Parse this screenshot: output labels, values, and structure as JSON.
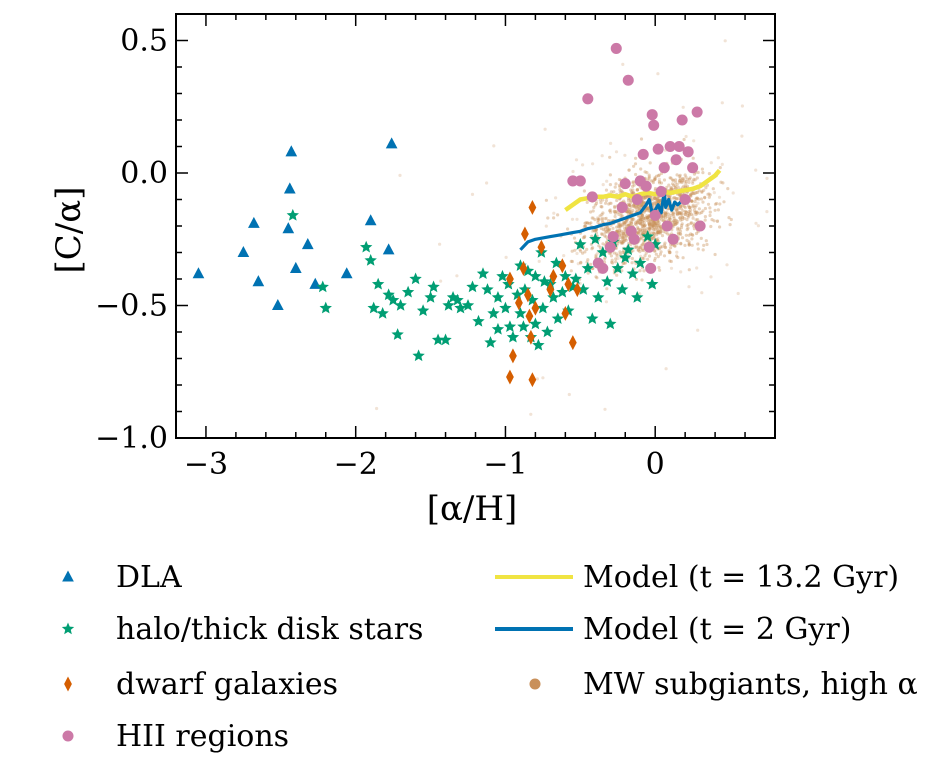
{
  "chart_data": {
    "type": "scatter",
    "xlabel": "[α/H]",
    "ylabel": "[C/α]",
    "xlim": [
      -3.2,
      0.8
    ],
    "ylim": [
      -1.0,
      0.6
    ],
    "xticks": [
      -3,
      -2,
      -1,
      0
    ],
    "yticks": [
      0.5,
      0.0,
      -0.5,
      -1.0
    ],
    "xtick_labels": [
      "−3",
      "−2",
      "−1",
      "0"
    ],
    "ytick_labels": [
      "0.5",
      "0.0",
      "−0.5",
      "−1.0"
    ],
    "minor_x_step": 0.2,
    "minor_y_step": 0.1,
    "grid": false,
    "legend_position": "below",
    "colors": {
      "dla": "#0072b2",
      "halo": "#009e73",
      "dwarf": "#d55e00",
      "hii": "#cc79a7",
      "model_long": "#f0e442",
      "model_short": "#0072b2",
      "subgiants": "#c9905a"
    },
    "series": [
      {
        "name": "DLA",
        "kind": "scatter",
        "marker": "triangle",
        "color": "#0072b2",
        "points": [
          [
            -3.05,
            -0.38
          ],
          [
            -2.75,
            -0.3
          ],
          [
            -2.68,
            -0.19
          ],
          [
            -2.65,
            -0.41
          ],
          [
            -2.52,
            -0.5
          ],
          [
            -2.45,
            -0.21
          ],
          [
            -2.44,
            -0.06
          ],
          [
            -2.43,
            0.08
          ],
          [
            -2.4,
            -0.36
          ],
          [
            -2.32,
            -0.27
          ],
          [
            -2.27,
            -0.42
          ],
          [
            -2.06,
            -0.38
          ],
          [
            -1.9,
            -0.18
          ],
          [
            -1.78,
            -0.29
          ],
          [
            -1.76,
            0.11
          ]
        ]
      },
      {
        "name": "halo/thick disk stars",
        "kind": "scatter",
        "marker": "star",
        "color": "#009e73",
        "points": [
          [
            -2.42,
            -0.16
          ],
          [
            -2.22,
            -0.43
          ],
          [
            -2.2,
            -0.51
          ],
          [
            -1.93,
            -0.28
          ],
          [
            -1.9,
            -0.33
          ],
          [
            -1.88,
            -0.51
          ],
          [
            -1.85,
            -0.42
          ],
          [
            -1.82,
            -0.53
          ],
          [
            -1.78,
            -0.46
          ],
          [
            -1.75,
            -0.48
          ],
          [
            -1.72,
            -0.61
          ],
          [
            -1.7,
            -0.5
          ],
          [
            -1.65,
            -0.45
          ],
          [
            -1.6,
            -0.4
          ],
          [
            -1.58,
            -0.69
          ],
          [
            -1.55,
            -0.52
          ],
          [
            -1.5,
            -0.47
          ],
          [
            -1.48,
            -0.43
          ],
          [
            -1.45,
            -0.63
          ],
          [
            -1.4,
            -0.63
          ],
          [
            -1.38,
            -0.5
          ],
          [
            -1.35,
            -0.47
          ],
          [
            -1.32,
            -0.48
          ],
          [
            -1.3,
            -0.51
          ],
          [
            -1.25,
            -0.5
          ],
          [
            -1.22,
            -0.43
          ],
          [
            -1.18,
            -0.56
          ],
          [
            -1.15,
            -0.38
          ],
          [
            -1.12,
            -0.44
          ],
          [
            -1.1,
            -0.64
          ],
          [
            -1.08,
            -0.53
          ],
          [
            -1.05,
            -0.47
          ],
          [
            -1.05,
            -0.59
          ],
          [
            -1.02,
            -0.39
          ],
          [
            -1.0,
            -0.51
          ],
          [
            -0.98,
            -0.42
          ],
          [
            -0.97,
            -0.58
          ],
          [
            -0.95,
            -0.62
          ],
          [
            -0.92,
            -0.46
          ],
          [
            -0.9,
            -0.35
          ],
          [
            -0.9,
            -0.53
          ],
          [
            -0.88,
            -0.58
          ],
          [
            -0.87,
            -0.44
          ],
          [
            -0.85,
            -0.37
          ],
          [
            -0.83,
            -0.62
          ],
          [
            -0.82,
            -0.48
          ],
          [
            -0.8,
            -0.39
          ],
          [
            -0.8,
            -0.57
          ],
          [
            -0.78,
            -0.65
          ],
          [
            -0.76,
            -0.3
          ],
          [
            -0.75,
            -0.51
          ],
          [
            -0.74,
            -0.41
          ],
          [
            -0.72,
            -0.6
          ],
          [
            -0.7,
            -0.42
          ],
          [
            -0.68,
            -0.47
          ],
          [
            -0.66,
            -0.34
          ],
          [
            -0.65,
            -0.55
          ],
          [
            -0.62,
            -0.45
          ],
          [
            -0.6,
            -0.39
          ],
          [
            -0.58,
            -0.52
          ],
          [
            -0.55,
            -0.43
          ],
          [
            -0.53,
            -0.4
          ],
          [
            -0.5,
            -0.27
          ],
          [
            -0.48,
            -0.44
          ],
          [
            -0.45,
            -0.36
          ],
          [
            -0.42,
            -0.55
          ],
          [
            -0.4,
            -0.25
          ],
          [
            -0.38,
            -0.47
          ],
          [
            -0.35,
            -0.3
          ],
          [
            -0.32,
            -0.41
          ],
          [
            -0.3,
            -0.57
          ],
          [
            -0.28,
            -0.26
          ],
          [
            -0.25,
            -0.36
          ],
          [
            -0.22,
            -0.44
          ],
          [
            -0.2,
            -0.32
          ],
          [
            -0.18,
            -0.29
          ],
          [
            -0.15,
            -0.38
          ],
          [
            -0.12,
            -0.47
          ],
          [
            -0.1,
            -0.34
          ],
          [
            -0.05,
            -0.24
          ],
          [
            -0.02,
            -0.42
          ],
          [
            0.0,
            -0.27
          ]
        ]
      },
      {
        "name": "dwarf galaxies",
        "kind": "scatter",
        "marker": "diamond",
        "color": "#d55e00",
        "points": [
          [
            -0.97,
            -0.77
          ],
          [
            -0.97,
            -0.4
          ],
          [
            -0.95,
            -0.69
          ],
          [
            -0.91,
            -0.49
          ],
          [
            -0.88,
            -0.36
          ],
          [
            -0.87,
            -0.23
          ],
          [
            -0.85,
            -0.46
          ],
          [
            -0.84,
            -0.54
          ],
          [
            -0.83,
            -0.62
          ],
          [
            -0.82,
            -0.78
          ],
          [
            -0.82,
            -0.13
          ],
          [
            -0.8,
            -0.51
          ],
          [
            -0.76,
            -0.28
          ],
          [
            -0.7,
            -0.44
          ],
          [
            -0.68,
            -0.39
          ],
          [
            -0.62,
            -0.35
          ],
          [
            -0.6,
            -0.53
          ],
          [
            -0.58,
            -0.42
          ],
          [
            -0.55,
            -0.64
          ],
          [
            -0.52,
            -0.44
          ]
        ]
      },
      {
        "name": "HII regions",
        "kind": "scatter",
        "marker": "circle",
        "color": "#cc79a7",
        "points": [
          [
            -0.55,
            -0.03
          ],
          [
            -0.5,
            -0.03
          ],
          [
            -0.45,
            0.28
          ],
          [
            -0.42,
            -0.09
          ],
          [
            -0.38,
            -0.34
          ],
          [
            -0.35,
            -0.36
          ],
          [
            -0.3,
            -0.28
          ],
          [
            -0.28,
            -0.24
          ],
          [
            -0.26,
            0.47
          ],
          [
            -0.22,
            -0.13
          ],
          [
            -0.2,
            -0.04
          ],
          [
            -0.18,
            0.35
          ],
          [
            -0.16,
            -0.22
          ],
          [
            -0.14,
            -0.25
          ],
          [
            -0.12,
            -0.1
          ],
          [
            -0.1,
            -0.03
          ],
          [
            -0.08,
            0.07
          ],
          [
            -0.06,
            -0.05
          ],
          [
            -0.04,
            -0.28
          ],
          [
            -0.03,
            -0.36
          ],
          [
            -0.02,
            0.22
          ],
          [
            -0.01,
            0.18
          ],
          [
            0.0,
            -0.16
          ],
          [
            0.02,
            0.09
          ],
          [
            0.04,
            -0.07
          ],
          [
            0.06,
            0.02
          ],
          [
            0.08,
            -0.2
          ],
          [
            0.1,
            0.1
          ],
          [
            0.12,
            -0.25
          ],
          [
            0.14,
            0.05
          ],
          [
            0.16,
            0.1
          ],
          [
            0.18,
            0.2
          ],
          [
            0.2,
            -0.1
          ],
          [
            0.22,
            0.08
          ],
          [
            0.25,
            0.02
          ],
          [
            0.28,
            0.23
          ],
          [
            0.3,
            -0.2
          ]
        ]
      },
      {
        "name": "Model (t = 13.2 Gyr)",
        "kind": "line",
        "color": "#f0e442",
        "width": 4.5,
        "points": [
          [
            -0.6,
            -0.14
          ],
          [
            -0.55,
            -0.12
          ],
          [
            -0.5,
            -0.1
          ],
          [
            -0.45,
            -0.095
          ],
          [
            -0.4,
            -0.09
          ],
          [
            -0.35,
            -0.09
          ],
          [
            -0.3,
            -0.085
          ],
          [
            -0.25,
            -0.09
          ],
          [
            -0.2,
            -0.08
          ],
          [
            -0.15,
            -0.09
          ],
          [
            -0.1,
            -0.08
          ],
          [
            -0.05,
            -0.075
          ],
          [
            0.0,
            -0.08
          ],
          [
            0.05,
            -0.07
          ],
          [
            0.1,
            -0.075
          ],
          [
            0.15,
            -0.07
          ],
          [
            0.2,
            -0.065
          ],
          [
            0.25,
            -0.06
          ],
          [
            0.3,
            -0.05
          ],
          [
            0.35,
            -0.03
          ],
          [
            0.4,
            -0.01
          ],
          [
            0.43,
            0.01
          ]
        ]
      },
      {
        "name": "Model (t = 2 Gyr)",
        "kind": "line",
        "color": "#0072b2",
        "width": 3.2,
        "points": [
          [
            -0.9,
            -0.29
          ],
          [
            -0.85,
            -0.26
          ],
          [
            -0.8,
            -0.25
          ],
          [
            -0.75,
            -0.245
          ],
          [
            -0.7,
            -0.24
          ],
          [
            -0.65,
            -0.235
          ],
          [
            -0.6,
            -0.23
          ],
          [
            -0.55,
            -0.225
          ],
          [
            -0.5,
            -0.22
          ],
          [
            -0.45,
            -0.21
          ],
          [
            -0.4,
            -0.205
          ],
          [
            -0.35,
            -0.195
          ],
          [
            -0.3,
            -0.19
          ],
          [
            -0.25,
            -0.18
          ],
          [
            -0.2,
            -0.17
          ],
          [
            -0.15,
            -0.16
          ],
          [
            -0.1,
            -0.15
          ],
          [
            -0.06,
            -0.12
          ],
          [
            -0.04,
            -0.1
          ],
          [
            -0.02,
            -0.15
          ],
          [
            0.0,
            -0.14
          ],
          [
            0.02,
            -0.12
          ],
          [
            0.04,
            -0.15
          ],
          [
            0.06,
            -0.07
          ],
          [
            0.07,
            -0.13
          ],
          [
            0.09,
            -0.1
          ],
          [
            0.11,
            -0.14
          ],
          [
            0.13,
            -0.11
          ],
          [
            0.15,
            -0.12
          ],
          [
            0.17,
            -0.11
          ]
        ]
      }
    ],
    "density_cloud": {
      "name": "MW subgiants, high α",
      "marker": "circle",
      "color": "#c9905a",
      "center": [
        -0.05,
        -0.17
      ],
      "spread": [
        0.2,
        0.08
      ],
      "count": 1500
    },
    "legend": [
      {
        "label": "DLA",
        "marker": "triangle",
        "color": "#0072b2"
      },
      {
        "label": "halo/thick disk stars",
        "marker": "star",
        "color": "#009e73"
      },
      {
        "label": "dwarf galaxies",
        "marker": "diamond",
        "color": "#d55e00"
      },
      {
        "label": "HII regions",
        "marker": "circle",
        "color": "#cc79a7"
      },
      {
        "label": "Model (t = 13.2 Gyr)",
        "marker": "line",
        "color": "#f0e442"
      },
      {
        "label": "Model (t = 2 Gyr)",
        "marker": "line",
        "color": "#0072b2"
      },
      {
        "label": "MW subgiants, high α",
        "marker": "circle",
        "color": "#c9905a"
      }
    ]
  }
}
